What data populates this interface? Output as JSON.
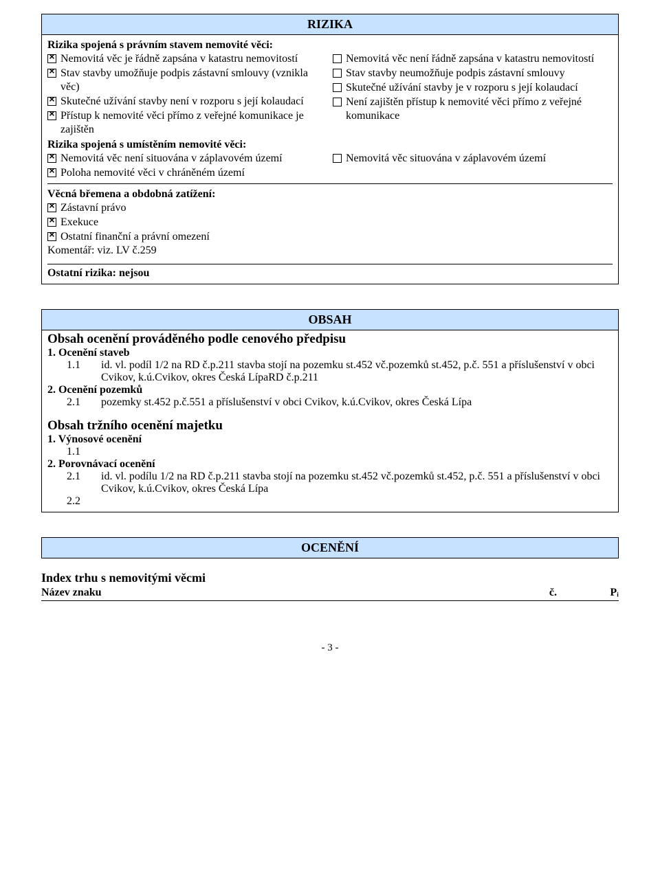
{
  "colors": {
    "headerBg": "#c6e2ff",
    "border": "#000000",
    "text": "#000000",
    "pageBg": "#ffffff"
  },
  "rizika": {
    "title": "RIZIKA",
    "sectionA": {
      "heading": "Rizika spojená s právním stavem nemovité věci:",
      "left": [
        {
          "cross": true,
          "text": "Nemovitá věc je řádně zapsána v katastru nemovitostí"
        },
        {
          "cross": true,
          "text": "Stav stavby umožňuje podpis zástavní smlouvy (vznikla věc)"
        },
        {
          "cross": true,
          "text": "Skutečné užívání stavby není v rozporu s její kolaudací"
        },
        {
          "cross": true,
          "text": "Přístup k nemovité věci přímo z veřejné komunikace je zajištěn"
        }
      ],
      "right": [
        {
          "cross": false,
          "text": "Nemovitá věc není řádně zapsána v katastru nemovitostí"
        },
        {
          "cross": false,
          "text": "Stav stavby neumožňuje podpis zástavní smlouvy"
        },
        {
          "cross": false,
          "text": "Skutečné užívání stavby je v rozporu s její kolaudací"
        },
        {
          "cross": false,
          "text": "Není zajištěn přístup k nemovité věci přímo z veřejné komunikace"
        }
      ]
    },
    "sectionB": {
      "heading": "Rizika spojená s umístěním nemovité věci:",
      "left": [
        {
          "cross": true,
          "text": "Nemovitá věc není situována v záplavovém území"
        },
        {
          "cross": true,
          "text": "Poloha nemovité věci v chráněném území"
        }
      ],
      "right": [
        {
          "cross": false,
          "text": "Nemovitá věc situována v záplavovém území"
        }
      ]
    },
    "sectionC": {
      "heading": "Věcná břemena a obdobná zatížení:",
      "items": [
        {
          "cross": true,
          "text": "Zástavní právo"
        },
        {
          "cross": true,
          "text": "Exekuce"
        },
        {
          "cross": true,
          "text": "Ostatní finanční a právní omezení"
        }
      ],
      "comment": "Komentář: viz. LV č.259"
    },
    "sectionD": "Ostatní rizika: nejsou"
  },
  "obsah": {
    "title": "OBSAH",
    "pricing": {
      "heading": "Obsah ocenění prováděného podle cenového předpisu",
      "g1": {
        "label": "1. Ocenění staveb",
        "items": [
          {
            "num": "1.1",
            "text": "id. vl. podíl 1/2 na RD č.p.211 stavba stojí na pozemku st.452 vč.pozemků st.452, p.č. 551 a příslušenství v obci Cvikov, k.ú.Cvikov, okres Česká LípaRD č.p.211"
          }
        ]
      },
      "g2": {
        "label": "2. Ocenění pozemků",
        "items": [
          {
            "num": "2.1",
            "text": "pozemky st.452 p.č.551 a příslušenství v obci Cvikov, k.ú.Cvikov, okres Česká Lípa"
          }
        ]
      }
    },
    "market": {
      "heading": "Obsah tržního ocenění majetku",
      "g1": {
        "label": "1. Výnosové ocenění",
        "items": [
          {
            "num": "1.1",
            "text": ""
          }
        ]
      },
      "g2": {
        "label": "2. Porovnávací ocenění",
        "items": [
          {
            "num": "2.1",
            "text": "id. vl. podílu 1/2 na RD č.p.211 stavba stojí na pozemku st.452 vč.pozemků st.452, p.č. 551 a příslušenství v obci Cvikov, k.ú.Cvikov, okres Česká Lípa"
          },
          {
            "num": "2.2",
            "text": ""
          }
        ]
      }
    }
  },
  "oceneni": {
    "title": "OCENĚNÍ",
    "indexTitle": "Index trhu s nemovitými věcmi",
    "tbl": {
      "colA": "Název znaku",
      "colB": "č.",
      "colC": "Pᵢ"
    }
  },
  "footer": "- 3 -"
}
